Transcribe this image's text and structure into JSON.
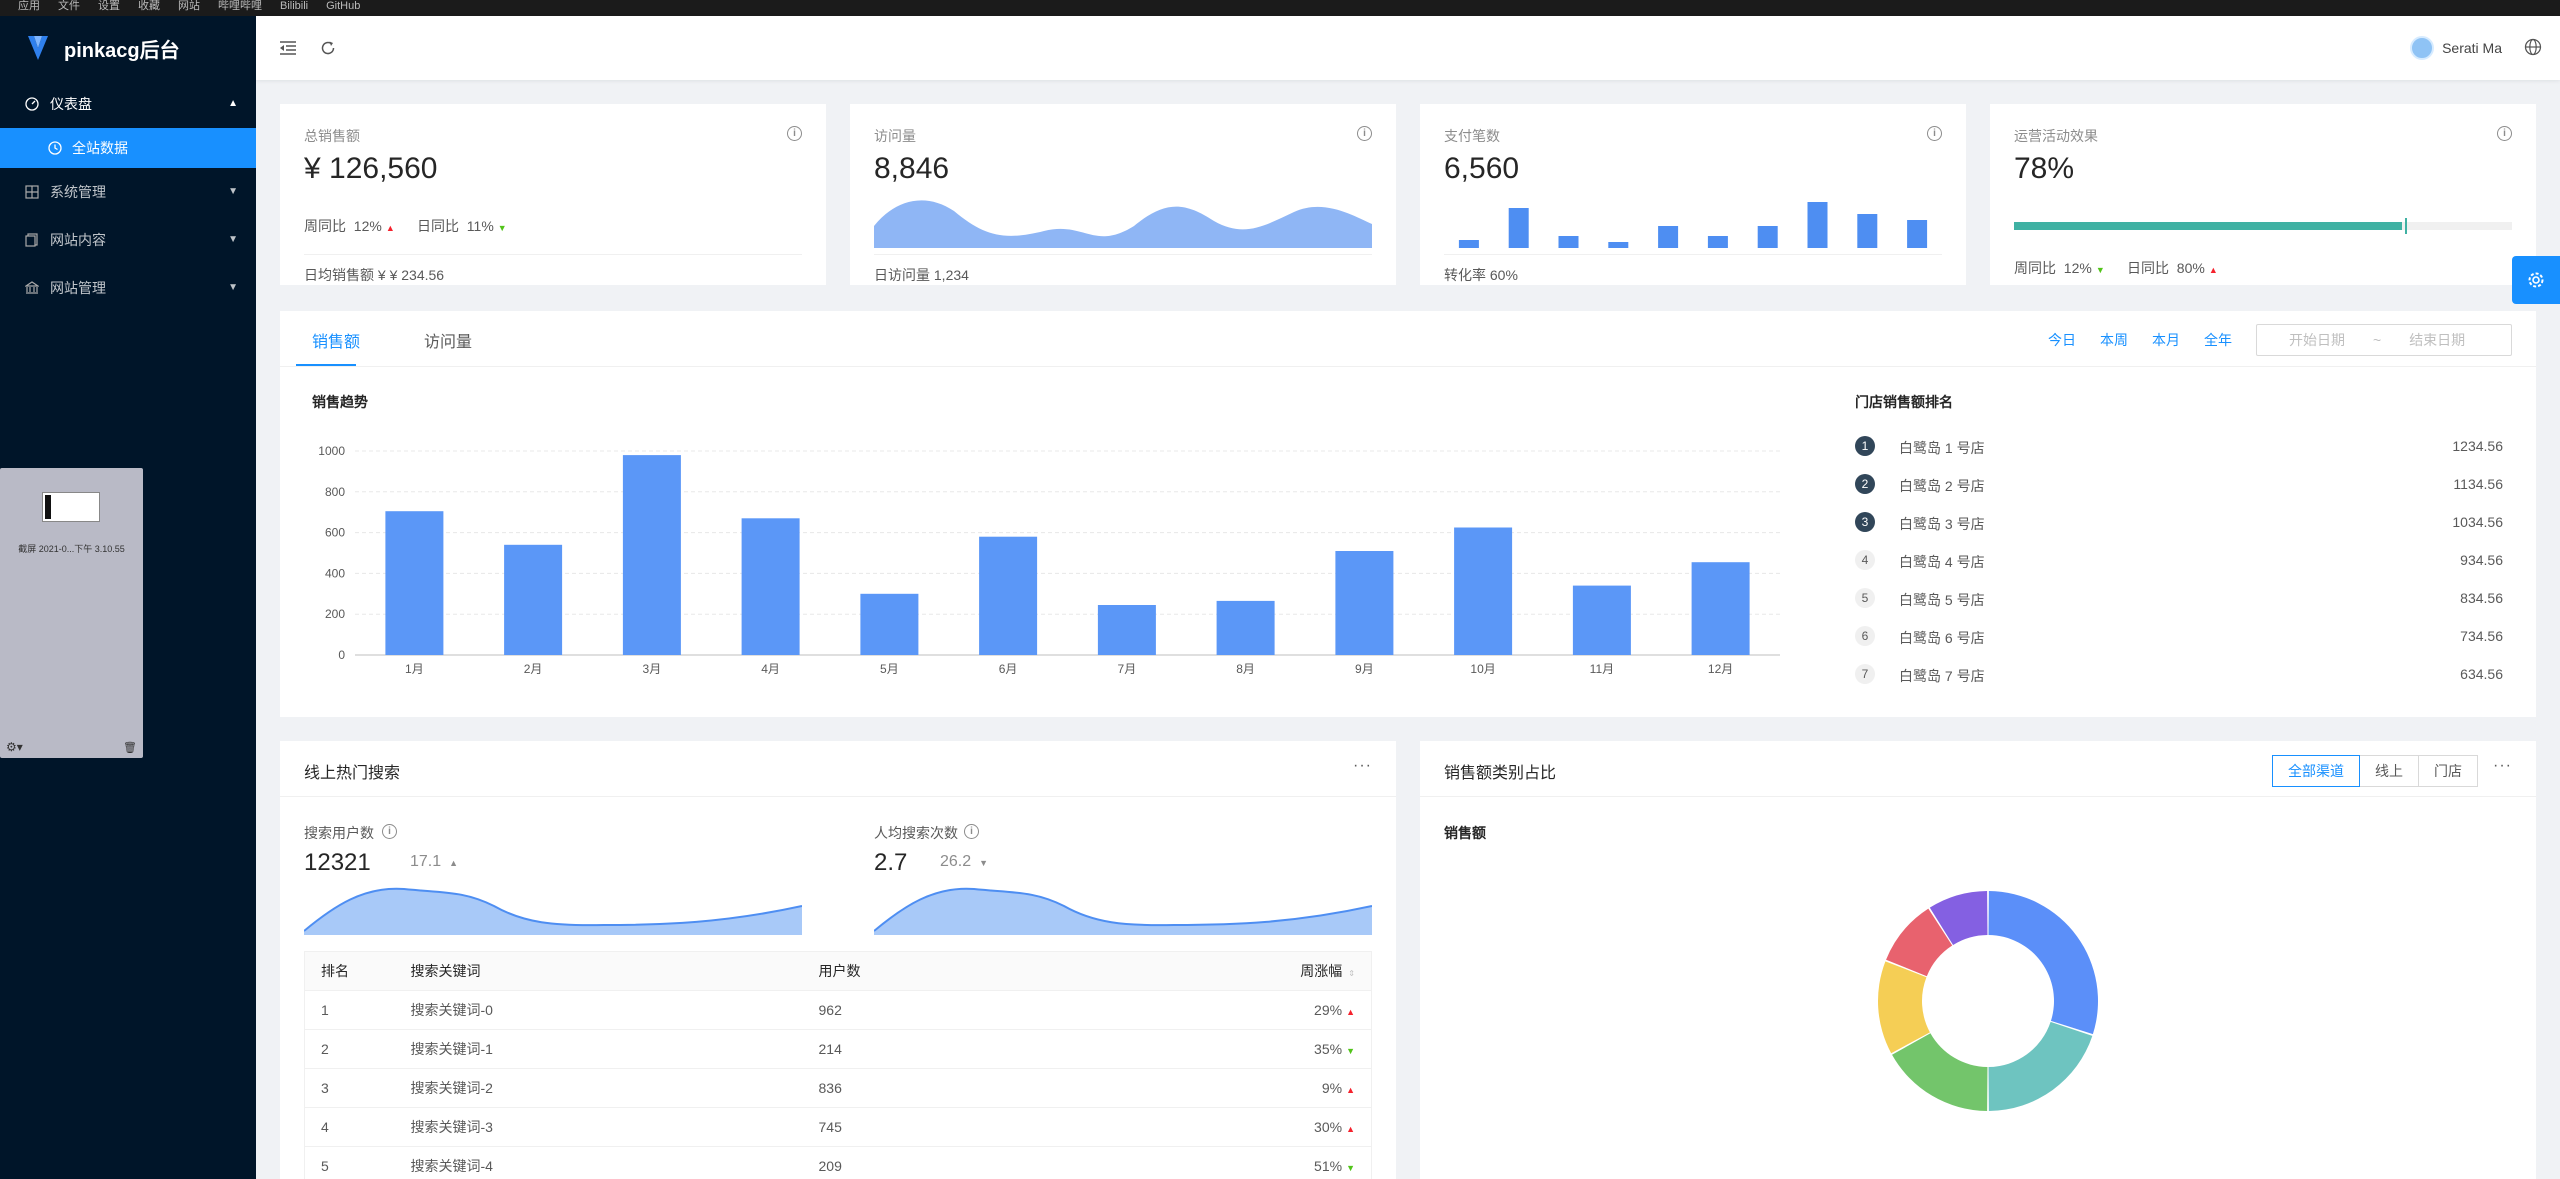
{
  "os_bar": [
    "应用",
    "文件",
    "设置",
    "收藏",
    "网站",
    "哔哩哔哩",
    "Bilibili",
    "GitHub"
  ],
  "sidebar": {
    "logo_text": "pinkacg后台",
    "menu": [
      {
        "label": "仪表盘",
        "icon": "dashboard-icon",
        "open": true
      },
      {
        "label": "系统管理",
        "icon": "system-icon"
      },
      {
        "label": "网站内容",
        "icon": "content-icon"
      },
      {
        "label": "网站管理",
        "icon": "bank-icon"
      }
    ],
    "sub_active": "全站数据"
  },
  "thumbnail": {
    "label": "截屏 2021-0...下午 3.10.55"
  },
  "header": {
    "user_name": "Serati Ma"
  },
  "stats": {
    "sales": {
      "title": "总销售额",
      "value": "¥ 126,560",
      "week_label": "周同比",
      "week_value": "12%",
      "day_label": "日同比",
      "day_value": "11%",
      "footer": "日均销售额 ¥ ¥ 234.56"
    },
    "visits": {
      "title": "访问量",
      "value": "8,846",
      "footer": "日访问量 1,234"
    },
    "payments": {
      "title": "支付笔数",
      "value": "6,560",
      "footer": "转化率 60%",
      "bars": [
        2,
        10,
        3,
        1.5,
        5.5,
        3,
        5.5,
        11.5,
        8.5,
        7
      ]
    },
    "ops": {
      "title": "运营活动效果",
      "value": "78%",
      "progress": 0.78,
      "week_label": "周同比",
      "week_value": "12%",
      "day_label": "日同比",
      "day_value": "80%"
    }
  },
  "sales_section": {
    "tabs": [
      "销售额",
      "访问量"
    ],
    "ranges": [
      "今日",
      "本周",
      "本月",
      "全年"
    ],
    "date_start": "开始日期",
    "date_sep": "~",
    "date_end": "结束日期",
    "chart_title": "销售趋势",
    "ranking_title": "门店销售额排名",
    "ranking": [
      {
        "rank": "1",
        "name": "白鹭岛 1 号店",
        "value": "1234.56"
      },
      {
        "rank": "2",
        "name": "白鹭岛 2 号店",
        "value": "1134.56"
      },
      {
        "rank": "3",
        "name": "白鹭岛 3 号店",
        "value": "1034.56"
      },
      {
        "rank": "4",
        "name": "白鹭岛 4 号店",
        "value": "934.56"
      },
      {
        "rank": "5",
        "name": "白鹭岛 5 号店",
        "value": "834.56"
      },
      {
        "rank": "6",
        "name": "白鹭岛 6 号店",
        "value": "734.56"
      },
      {
        "rank": "7",
        "name": "白鹭岛 7 号店",
        "value": "634.56"
      }
    ]
  },
  "chart_data": {
    "type": "bar",
    "title": "销售趋势",
    "categories": [
      "1月",
      "2月",
      "3月",
      "4月",
      "5月",
      "6月",
      "7月",
      "8月",
      "9月",
      "10月",
      "11月",
      "12月"
    ],
    "values": [
      705,
      540,
      980,
      670,
      300,
      580,
      245,
      265,
      510,
      625,
      340,
      455
    ],
    "ylim": [
      0,
      1000
    ],
    "yticks": [
      "0",
      "200",
      "400",
      "600",
      "800",
      "1000"
    ],
    "grid": true,
    "color": "#5b97f7"
  },
  "hot_search": {
    "title": "线上热门搜索",
    "more": "···",
    "users_label": "搜索用户数",
    "users_value": "12321",
    "users_sub": "17.1",
    "per_label": "人均搜索次数",
    "per_value": "2.7",
    "per_sub": "26.2",
    "columns": [
      "排名",
      "搜索关键词",
      "用户数",
      "周涨幅"
    ],
    "rows": [
      {
        "rank": "1",
        "keyword": "搜索关键词-0",
        "users": "962",
        "change": "29%",
        "dir": "up"
      },
      {
        "rank": "2",
        "keyword": "搜索关键词-1",
        "users": "214",
        "change": "35%",
        "dir": "down"
      },
      {
        "rank": "3",
        "keyword": "搜索关键词-2",
        "users": "836",
        "change": "9%",
        "dir": "up"
      },
      {
        "rank": "4",
        "keyword": "搜索关键词-3",
        "users": "745",
        "change": "30%",
        "dir": "up"
      },
      {
        "rank": "5",
        "keyword": "搜索关键词-4",
        "users": "209",
        "change": "51%",
        "dir": "down"
      }
    ]
  },
  "category": {
    "title": "销售额类别占比",
    "more": "···",
    "radios": [
      "全部渠道",
      "线上",
      "门店"
    ],
    "subtitle": "销售额",
    "slices": [
      {
        "value": 30,
        "color": "#5b8ff9"
      },
      {
        "value": 20,
        "color": "#6ec4c0"
      },
      {
        "value": 17,
        "color": "#73c56b"
      },
      {
        "value": 14,
        "color": "#f5ce55"
      },
      {
        "value": 10,
        "color": "#e8626e"
      },
      {
        "value": 9,
        "color": "#8460e2"
      }
    ]
  }
}
